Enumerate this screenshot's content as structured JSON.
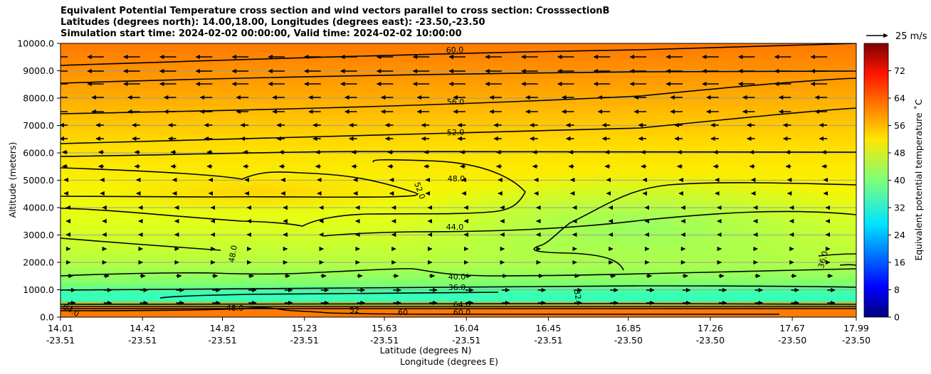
{
  "chart_data": {
    "type": "heatmap",
    "title_lines": [
      "Equivalent Potential Temperature cross section and wind vectors parallel to cross section: CrosssectionB",
      "Latitudes (degrees north): 14.00,18.00, Longitudes (degrees east): -23.50,-23.50",
      "Simulation start time: 2024-02-02 00:00:00, Valid time: 2024-02-02 10:00:00"
    ],
    "xlabel": "Latitude (degrees N)",
    "xlabel2": "Longitude (degrees E)",
    "ylabel": "Altitude (meters)",
    "x_ticks": [
      {
        "lat": "14.01",
        "lon": "-23.51"
      },
      {
        "lat": "14.42",
        "lon": "-23.51"
      },
      {
        "lat": "14.82",
        "lon": "-23.51"
      },
      {
        "lat": "15.23",
        "lon": "-23.51"
      },
      {
        "lat": "15.63",
        "lon": "-23.51"
      },
      {
        "lat": "16.04",
        "lon": "-23.51"
      },
      {
        "lat": "16.45",
        "lon": "-23.51"
      },
      {
        "lat": "16.85",
        "lon": "-23.50"
      },
      {
        "lat": "17.26",
        "lon": "-23.50"
      },
      {
        "lat": "17.67",
        "lon": "-23.50"
      },
      {
        "lat": "17.99",
        "lon": "-23.50"
      }
    ],
    "y_ticks": [
      "0.0",
      "1000.0",
      "2000.0",
      "3000.0",
      "4000.0",
      "5000.0",
      "6000.0",
      "7000.0",
      "8000.0",
      "9000.0",
      "10000.0"
    ],
    "ylim": [
      0,
      10000
    ],
    "grid": "horizontal",
    "colorbar": {
      "label": "Equivalent potential temperature ˚C",
      "range": [
        0,
        80
      ],
      "ticks": [
        "0",
        "8",
        "16",
        "24",
        "32",
        "40",
        "48",
        "56",
        "64",
        "72"
      ],
      "colormap": "jet"
    },
    "quiver_key": "25 m/s",
    "contour_labels": [
      "60.0",
      "56.0",
      "52.0",
      "48.0",
      "52.0",
      "44.0",
      "48.0",
      "40.0",
      "36.0",
      "36.0",
      "32.",
      "60.0",
      "64.0",
      "64.0",
      "48.0",
      "60",
      "52"
    ],
    "layers": [
      {
        "z_range": [
          0,
          350
        ],
        "theta_e": 62
      },
      {
        "z_range": [
          350,
          700
        ],
        "theta_e": 36
      },
      {
        "z_range": [
          700,
          1200
        ],
        "theta_e": 38
      },
      {
        "z_range": [
          1200,
          2500
        ],
        "theta_e": 43
      },
      {
        "z_range": [
          2500,
          4000
        ],
        "theta_e": 45
      },
      {
        "z_range": [
          4000,
          5500
        ],
        "theta_e": 49
      },
      {
        "z_range": [
          5500,
          7000
        ],
        "theta_e": 52
      },
      {
        "z_range": [
          7000,
          8500
        ],
        "theta_e": 56
      },
      {
        "z_range": [
          8500,
          10000
        ],
        "theta_e": 60
      }
    ]
  }
}
